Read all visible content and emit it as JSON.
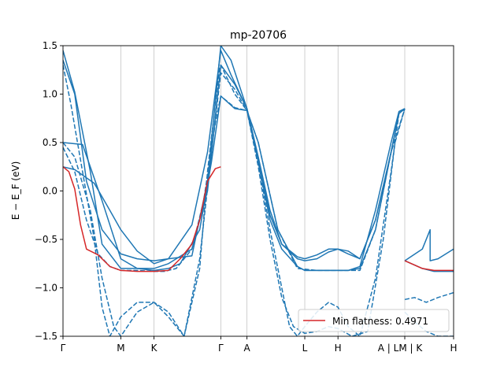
{
  "chart_data": {
    "type": "line",
    "title": "mp-20706",
    "xlabel": "",
    "ylabel": "E − E_F (eV)",
    "ylim": [
      -1.5,
      1.5
    ],
    "yticks": [
      -1.5,
      -1.0,
      -0.5,
      0.0,
      0.5,
      1.0,
      1.5
    ],
    "ytick_labels": [
      "−1.5",
      "−1.0",
      "−0.5",
      "0.0",
      "0.5",
      "1.0",
      "1.5"
    ],
    "xlim": [
      0,
      1
    ],
    "xticks": [
      {
        "label": "Γ",
        "pos": 0.0
      },
      {
        "label": "M",
        "pos": 0.148
      },
      {
        "label": "K",
        "pos": 0.233
      },
      {
        "label": "Γ",
        "pos": 0.404
      },
      {
        "label": "A",
        "pos": 0.471
      },
      {
        "label": "L",
        "pos": 0.619
      },
      {
        "label": "H",
        "pos": 0.704
      },
      {
        "label": "A | LM | K",
        "pos": 0.875
      },
      {
        "label": "H",
        "pos": 1.0
      }
    ],
    "band_color": "#1f77b4",
    "flat_color": "#d62728",
    "legend": {
      "label": "Min flatness: 0.4971",
      "placement": "lower-right"
    },
    "series": [
      {
        "name": "band-solid-1",
        "style": "solid",
        "x": [
          0,
          0.03,
          0.08,
          0.12,
          0.148,
          0.19,
          0.233,
          0.27,
          0.33,
          0.37,
          0.404,
          0.43,
          0.471,
          0.5,
          0.53,
          0.56,
          0.6,
          0.619,
          0.65,
          0.68,
          0.704,
          0.73,
          0.76,
          0.8,
          0.84,
          0.86,
          0.875
        ],
        "y": [
          0.25,
          0.22,
          0.08,
          -0.2,
          -0.4,
          -0.62,
          -0.75,
          -0.7,
          -0.35,
          0.4,
          1.45,
          1.2,
          0.85,
          0.3,
          -0.25,
          -0.55,
          -0.68,
          -0.7,
          -0.66,
          -0.6,
          -0.6,
          -0.65,
          -0.7,
          -0.3,
          0.4,
          0.8,
          0.85
        ]
      },
      {
        "name": "band-solid-2",
        "style": "solid",
        "x": [
          0,
          0.03,
          0.06,
          0.1,
          0.148,
          0.19,
          0.233,
          0.27,
          0.33,
          0.37,
          0.404,
          0.43,
          0.471,
          0.5,
          0.53,
          0.56,
          0.6,
          0.619,
          0.65,
          0.68,
          0.704,
          0.73,
          0.76,
          0.8,
          0.84,
          0.86,
          0.875
        ],
        "y": [
          1.35,
          1.0,
          0.1,
          -0.4,
          -0.65,
          -0.7,
          -0.72,
          -0.7,
          -0.67,
          0.1,
          1.5,
          1.35,
          0.85,
          0.35,
          -0.2,
          -0.55,
          -0.7,
          -0.72,
          -0.7,
          -0.63,
          -0.6,
          -0.62,
          -0.7,
          -0.3,
          0.4,
          0.8,
          0.85
        ]
      },
      {
        "name": "band-solid-3",
        "style": "solid",
        "x": [
          0,
          0.03,
          0.07,
          0.1,
          0.148,
          0.19,
          0.233,
          0.27,
          0.33,
          0.37,
          0.404,
          0.44,
          0.471,
          0.5,
          0.53,
          0.56,
          0.6,
          0.619,
          0.65,
          0.68,
          0.704,
          0.73,
          0.76,
          0.8,
          0.84,
          0.86,
          0.875
        ],
        "y": [
          1.45,
          1.02,
          0.2,
          -0.55,
          -0.8,
          -0.8,
          -0.8,
          -0.75,
          -0.6,
          0.0,
          1.3,
          1.1,
          0.85,
          0.3,
          -0.3,
          -0.6,
          -0.78,
          -0.82,
          -0.82,
          -0.82,
          -0.82,
          -0.82,
          -0.78,
          -0.2,
          0.5,
          0.82,
          0.85
        ]
      },
      {
        "name": "band-solid-4",
        "style": "solid",
        "x": [
          0,
          0.05,
          0.1,
          0.148,
          0.19,
          0.233,
          0.27,
          0.3,
          0.35,
          0.38,
          0.404,
          0.44,
          0.471,
          0.5,
          0.55,
          0.6,
          0.619,
          0.65,
          0.68,
          0.704,
          0.73,
          0.76,
          0.8,
          0.84,
          0.86,
          0.875
        ],
        "y": [
          0.5,
          0.48,
          -0.1,
          -0.7,
          -0.8,
          -0.82,
          -0.8,
          -0.75,
          -0.4,
          0.3,
          0.98,
          0.85,
          0.83,
          0.5,
          -0.4,
          -0.78,
          -0.82,
          -0.82,
          -0.82,
          -0.82,
          -0.82,
          -0.8,
          -0.4,
          0.4,
          0.8,
          0.85
        ]
      },
      {
        "name": "band-solid-right-1",
        "style": "solid",
        "x": [
          0.875,
          0.92,
          0.94,
          0.94,
          0.96,
          1.0
        ],
        "y": [
          -0.72,
          -0.6,
          -0.4,
          -0.72,
          -0.7,
          -0.6
        ]
      },
      {
        "name": "band-solid-right-2",
        "style": "solid",
        "x": [
          0.875,
          0.92,
          0.95,
          1.0
        ],
        "y": [
          -0.72,
          -0.8,
          -0.83,
          -0.83
        ]
      },
      {
        "name": "band-dashed-1",
        "style": "dashed",
        "x": [
          0,
          0.02,
          0.05,
          0.08,
          0.1,
          0.12,
          0.148,
          0.19,
          0.233,
          0.27,
          0.31,
          0.35,
          0.37,
          0.4,
          0.404,
          0.44,
          0.471,
          0.5,
          0.53,
          0.56,
          0.58,
          0.6,
          0.619,
          0.65,
          0.68,
          0.704,
          0.73,
          0.76,
          0.8,
          0.84,
          0.86,
          0.875
        ],
        "y": [
          1.3,
          0.9,
          0.2,
          -0.5,
          -1.2,
          -1.5,
          -1.3,
          -1.15,
          -1.15,
          -1.25,
          -1.5,
          -0.8,
          0.2,
          1.25,
          1.3,
          1.0,
          0.83,
          0.3,
          -0.4,
          -1.0,
          -1.4,
          -1.5,
          -1.4,
          -1.25,
          -1.15,
          -1.2,
          -1.4,
          -1.5,
          -0.9,
          0.2,
          0.8,
          0.85
        ]
      },
      {
        "name": "band-dashed-2",
        "style": "dashed",
        "x": [
          0,
          0.03,
          0.07,
          0.1,
          0.13,
          0.148,
          0.19,
          0.233,
          0.27,
          0.31,
          0.35,
          0.38,
          0.404,
          0.44,
          0.471,
          0.5,
          0.53,
          0.56,
          0.59,
          0.619,
          0.65,
          0.68,
          0.704,
          0.74,
          0.78,
          0.82,
          0.85,
          0.875
        ],
        "y": [
          0.5,
          0.35,
          -0.2,
          -0.9,
          -1.4,
          -1.5,
          -1.25,
          -1.15,
          -1.3,
          -1.5,
          -0.7,
          0.4,
          1.22,
          1.05,
          0.83,
          0.25,
          -0.5,
          -1.1,
          -1.4,
          -1.47,
          -1.45,
          -1.4,
          -1.42,
          -1.5,
          -1.45,
          -0.5,
          0.5,
          0.85
        ]
      },
      {
        "name": "band-dashed-3",
        "style": "dashed",
        "x": [
          0,
          0.03,
          0.06,
          0.09,
          0.12,
          0.148,
          0.19,
          0.233,
          0.26,
          0.29,
          0.33,
          0.36,
          0.39,
          0.404,
          0.44,
          0.471,
          0.5,
          0.55,
          0.6,
          0.65,
          0.704,
          0.76,
          0.8,
          0.84,
          0.875
        ],
        "y": [
          0.45,
          0.2,
          -0.3,
          -0.65,
          -0.78,
          -0.82,
          -0.82,
          -0.83,
          -0.83,
          -0.8,
          -0.6,
          -0.1,
          0.7,
          0.98,
          0.86,
          0.83,
          0.5,
          -0.4,
          -0.8,
          -0.82,
          -0.82,
          -0.82,
          -0.4,
          0.4,
          0.85
        ]
      },
      {
        "name": "band-dashed-right-1",
        "style": "dashed",
        "x": [
          0.875,
          0.9,
          0.93,
          0.96,
          1.0
        ],
        "y": [
          -1.12,
          -1.1,
          -1.15,
          -1.1,
          -1.05
        ]
      },
      {
        "name": "band-dashed-right-2",
        "style": "dashed",
        "x": [
          0.875,
          0.9,
          0.93,
          0.96,
          1.0
        ],
        "y": [
          -1.25,
          -1.35,
          -1.45,
          -1.5,
          -1.5
        ]
      },
      {
        "name": "min-flat-band",
        "style": "flat",
        "x": [
          0,
          0.015,
          0.03,
          0.045,
          0.06,
          0.09,
          0.12,
          0.148,
          0.19,
          0.233,
          0.27,
          0.3,
          0.33,
          0.35,
          0.37,
          0.39,
          0.404
        ],
        "y": [
          0.25,
          0.2,
          0.02,
          -0.35,
          -0.6,
          -0.66,
          -0.78,
          -0.82,
          -0.83,
          -0.83,
          -0.82,
          -0.7,
          -0.55,
          -0.3,
          0.1,
          0.23,
          0.25
        ]
      },
      {
        "name": "min-flat-band-right",
        "style": "flat",
        "x": [
          0.875,
          0.92,
          0.95,
          1.0
        ],
        "y": [
          -0.72,
          -0.8,
          -0.82,
          -0.82
        ]
      }
    ]
  }
}
